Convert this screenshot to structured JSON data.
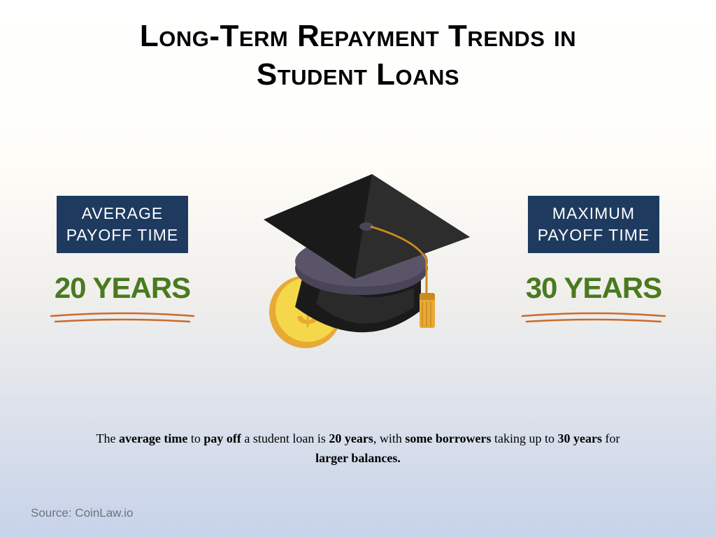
{
  "title": {
    "line1": "Long-Term Repayment Trends in",
    "line2": "Student Loans",
    "fontsize": 44
  },
  "left_stat": {
    "label_line1": "AVERAGE",
    "label_line2": "PAYOFF TIME",
    "value": "20 YEARS"
  },
  "right_stat": {
    "label_line1": "MAXIMUM",
    "label_line2": "PAYOFF TIME",
    "value": "30 YEARS"
  },
  "stat_style": {
    "label_bg": "#1e3a5f",
    "label_color": "#ffffff",
    "label_fontsize": 23,
    "value_color": "#4a7a1f",
    "value_fontsize": 42,
    "underline_color": "#c96a2b"
  },
  "cap_colors": {
    "top_dark": "#1a1a1a",
    "top_right": "#2d2d2d",
    "band": "#4a4458",
    "under_dark": "#1a1a1a",
    "under_mid": "#2a2a2a",
    "coin_outer": "#e8a935",
    "coin_inner": "#f5d849",
    "coin_symbol": "#e8a935",
    "tassel": "#e8a935",
    "tassel_dark": "#c78b1f"
  },
  "description": {
    "parts": [
      {
        "t": "The ",
        "b": false
      },
      {
        "t": "average time",
        "b": true
      },
      {
        "t": " to ",
        "b": false
      },
      {
        "t": "pay off",
        "b": true
      },
      {
        "t": " a student loan is ",
        "b": false
      },
      {
        "t": "20 years",
        "b": true
      },
      {
        "t": ", with ",
        "b": false
      },
      {
        "t": "some borrowers",
        "b": true
      },
      {
        "t": " taking up to ",
        "b": false
      },
      {
        "t": "30 years",
        "b": true
      },
      {
        "t": " for ",
        "b": false
      },
      {
        "t": "larger balances.",
        "b": true
      }
    ],
    "fontsize": 18
  },
  "source": {
    "text": "Source: CoinLaw.io",
    "fontsize": 17
  }
}
